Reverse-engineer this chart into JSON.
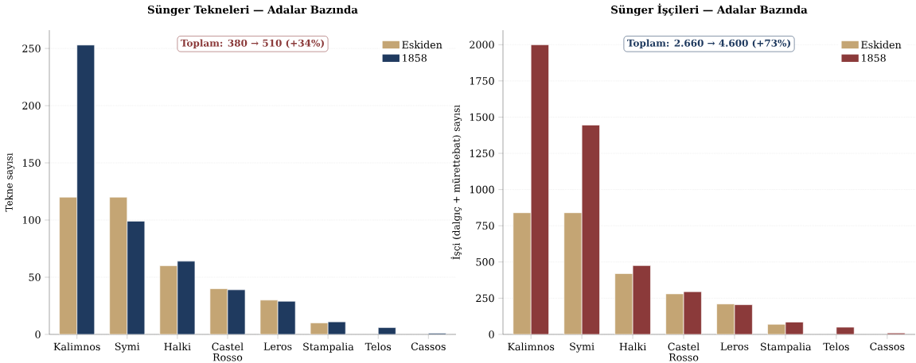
{
  "chart_data": [
    {
      "type": "bar",
      "title": "Sünger Tekneleri — Adalar Bazında",
      "ylabel": "Tekne sayısı",
      "categories": [
        "Kalimnos",
        "Symi",
        "Halki",
        "Castel Rosso",
        "Leros",
        "Stampalia",
        "Telos",
        "Cassos"
      ],
      "series": [
        {
          "name": "Eskiden",
          "color": "#c4a574",
          "values": [
            120,
            120,
            60,
            40,
            30,
            10,
            null,
            null
          ]
        },
        {
          "name": "1858",
          "color": "#1f3a5f",
          "values": [
            253,
            99,
            64,
            39,
            29,
            11,
            6,
            1
          ]
        }
      ],
      "ylim": [
        0,
        266
      ],
      "yticks": [
        0,
        50,
        100,
        150,
        200,
        250
      ],
      "grid": "y",
      "legend": "top right",
      "annotations": [
        "Toplam: 380 → 510 (+34%)"
      ]
    },
    {
      "type": "bar",
      "title": "Sünger İşçileri — Adalar Bazında",
      "ylabel": "İşçi (dalgıç + mürettebat) sayısı",
      "categories": [
        "Kalimnos",
        "Symi",
        "Halki",
        "Castel Rosso",
        "Leros",
        "Stampalia",
        "Telos",
        "Cassos"
      ],
      "series": [
        {
          "name": "Eskiden",
          "color": "#c4a574",
          "values": [
            840,
            840,
            420,
            280,
            210,
            70,
            null,
            null
          ]
        },
        {
          "name": "1858",
          "color": "#8b3a3a",
          "values": [
            2000,
            1445,
            475,
            295,
            205,
            85,
            50,
            10
          ]
        }
      ],
      "ylim": [
        0,
        2100
      ],
      "yticks": [
        0,
        250,
        500,
        750,
        1000,
        1250,
        1500,
        1750,
        2000
      ],
      "grid": "y",
      "legend": "top right",
      "annotations": [
        "Toplam: 2.660 → 4.600 (+73%)"
      ]
    }
  ]
}
